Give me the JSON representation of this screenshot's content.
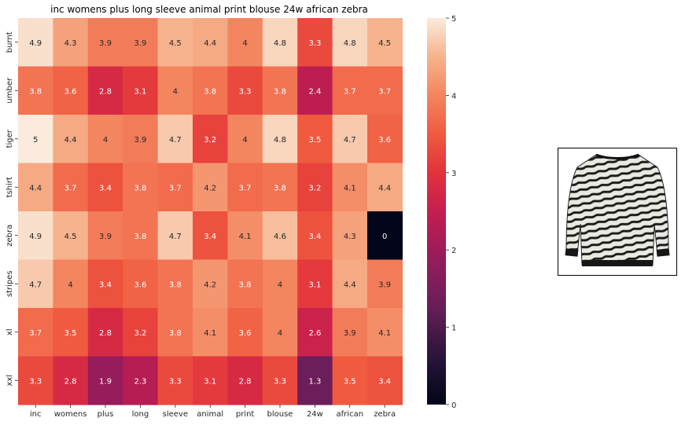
{
  "chart_data": {
    "type": "heatmap",
    "title": "inc womens plus long sleeve animal print blouse 24w african zebra",
    "x_labels": [
      "inc",
      "womens",
      "plus",
      "long",
      "sleeve",
      "animal",
      "print",
      "blouse",
      "24w",
      "african",
      "zebra"
    ],
    "y_labels": [
      "burnt",
      "umber",
      "tiger",
      "tshirt",
      "zebra",
      "stripes",
      "xl",
      "xxl"
    ],
    "values": [
      [
        4.9,
        4.3,
        3.9,
        3.9,
        4.5,
        4.4,
        4,
        4.8,
        3.3,
        4.8,
        4.5
      ],
      [
        3.8,
        3.6,
        2.8,
        3.1,
        4,
        3.8,
        3.3,
        3.8,
        2.4,
        3.7,
        3.7
      ],
      [
        5,
        4.4,
        4,
        3.9,
        4.7,
        3.2,
        4,
        4.8,
        3.5,
        4.7,
        3.6
      ],
      [
        4.4,
        3.7,
        3.4,
        3.8,
        3.7,
        4.2,
        3.7,
        3.8,
        3.2,
        4.1,
        4.4
      ],
      [
        4.9,
        4.5,
        3.9,
        3.8,
        4.7,
        3.4,
        4.1,
        4.6,
        3.4,
        4.3,
        0
      ],
      [
        4.7,
        4,
        3.4,
        3.6,
        3.8,
        4.2,
        3.8,
        4,
        3.1,
        4.4,
        3.9
      ],
      [
        3.7,
        3.5,
        2.8,
        3.2,
        3.8,
        4.1,
        3.6,
        4,
        2.6,
        3.9,
        4.1
      ],
      [
        3.3,
        2.8,
        1.9,
        2.3,
        3.3,
        3.1,
        2.8,
        3.3,
        1.3,
        3.5,
        3.4
      ]
    ],
    "vmin": 0,
    "vmax": 5,
    "colorbar_ticks": [
      0,
      1,
      2,
      3,
      4,
      5
    ],
    "colormap": "rocket",
    "annotated": true
  },
  "product_image": {
    "icon": "zebra-print-sweater-icon"
  }
}
